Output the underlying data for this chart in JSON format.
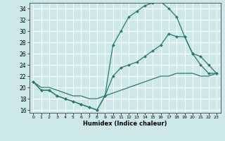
{
  "xlabel": "Humidex (Indice chaleur)",
  "bg_color": "#cce8e8",
  "grid_color": "#ffffff",
  "line_color": "#2a7a6a",
  "xlim": [
    -0.5,
    23.5
  ],
  "ylim": [
    15.5,
    35.0
  ],
  "xticks": [
    0,
    1,
    2,
    3,
    4,
    5,
    6,
    7,
    8,
    9,
    10,
    11,
    12,
    13,
    14,
    15,
    16,
    17,
    18,
    19,
    20,
    21,
    22,
    23
  ],
  "yticks": [
    16,
    18,
    20,
    22,
    24,
    26,
    28,
    30,
    32,
    34
  ],
  "line1_x": [
    0,
    1,
    2,
    3,
    4,
    5,
    6,
    7,
    8,
    9,
    10,
    11,
    12,
    13,
    14,
    15,
    16,
    17,
    18,
    19,
    20,
    21,
    22,
    23
  ],
  "line1_y": [
    21.0,
    19.5,
    19.5,
    18.5,
    18.0,
    17.5,
    17.0,
    16.5,
    16.0,
    18.5,
    27.5,
    30.0,
    32.5,
    33.5,
    34.5,
    35.0,
    35.2,
    34.0,
    32.5,
    29.0,
    26.0,
    24.0,
    22.5,
    22.5
  ],
  "line2_x": [
    0,
    1,
    2,
    3,
    4,
    5,
    6,
    7,
    8,
    9,
    10,
    11,
    12,
    13,
    14,
    15,
    16,
    17,
    18,
    19,
    20,
    21,
    22,
    23
  ],
  "line2_y": [
    21.0,
    19.5,
    19.5,
    18.5,
    18.0,
    17.5,
    17.0,
    16.5,
    16.0,
    18.5,
    22.0,
    23.5,
    24.0,
    24.5,
    25.5,
    26.5,
    27.5,
    29.5,
    29.0,
    29.0,
    26.0,
    25.5,
    24.0,
    22.5
  ],
  "line3_x": [
    0,
    1,
    2,
    3,
    4,
    5,
    6,
    7,
    8,
    9,
    10,
    11,
    12,
    13,
    14,
    15,
    16,
    17,
    18,
    19,
    20,
    21,
    22,
    23
  ],
  "line3_y": [
    21.0,
    20.0,
    20.0,
    19.5,
    19.0,
    18.5,
    18.5,
    18.0,
    18.0,
    18.5,
    19.0,
    19.5,
    20.0,
    20.5,
    21.0,
    21.5,
    22.0,
    22.0,
    22.5,
    22.5,
    22.5,
    22.0,
    22.0,
    22.5
  ]
}
